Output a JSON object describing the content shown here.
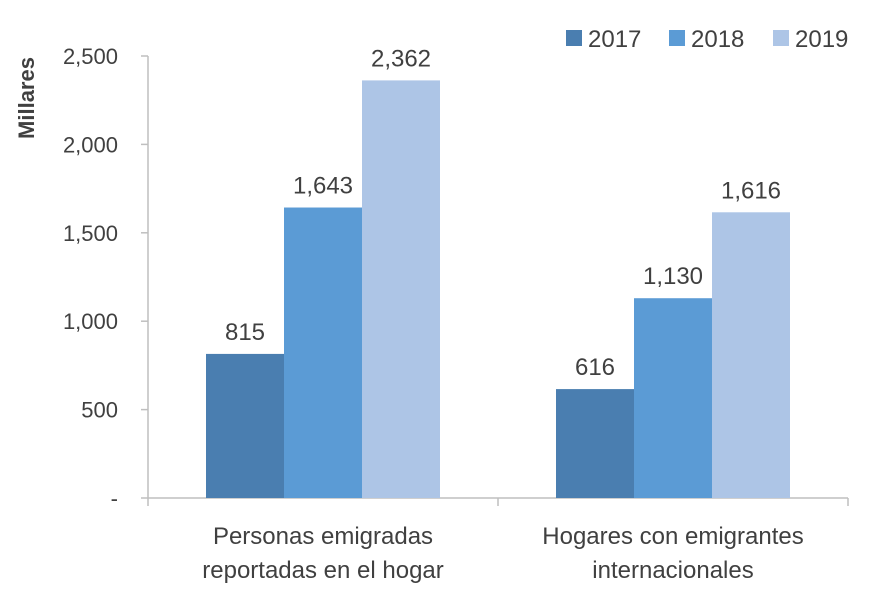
{
  "chart_data": {
    "type": "bar",
    "ylabel": "Millares",
    "ylim": [
      0,
      2500
    ],
    "y_ticks": [
      0,
      500,
      1000,
      1500,
      2000,
      2500
    ],
    "y_tick_labels": [
      "-",
      "500",
      "1,000",
      "1,500",
      "2,000",
      "2,500"
    ],
    "categories": [
      [
        "Personas emigradas",
        "reportadas en el hogar"
      ],
      [
        "Hogares con emigrantes",
        "internacionales"
      ]
    ],
    "series": [
      {
        "name": "2017",
        "color": "#4a7eb0",
        "values": [
          815,
          616
        ],
        "labels": [
          "815",
          "616"
        ]
      },
      {
        "name": "2018",
        "color": "#5b9bd5",
        "values": [
          1643,
          1130
        ],
        "labels": [
          "1,643",
          "1,130"
        ]
      },
      {
        "name": "2019",
        "color": "#adc5e6",
        "values": [
          2362,
          1616
        ],
        "labels": [
          "2,362",
          "1,616"
        ]
      }
    ],
    "legend_position": "top-right",
    "grid": false
  }
}
